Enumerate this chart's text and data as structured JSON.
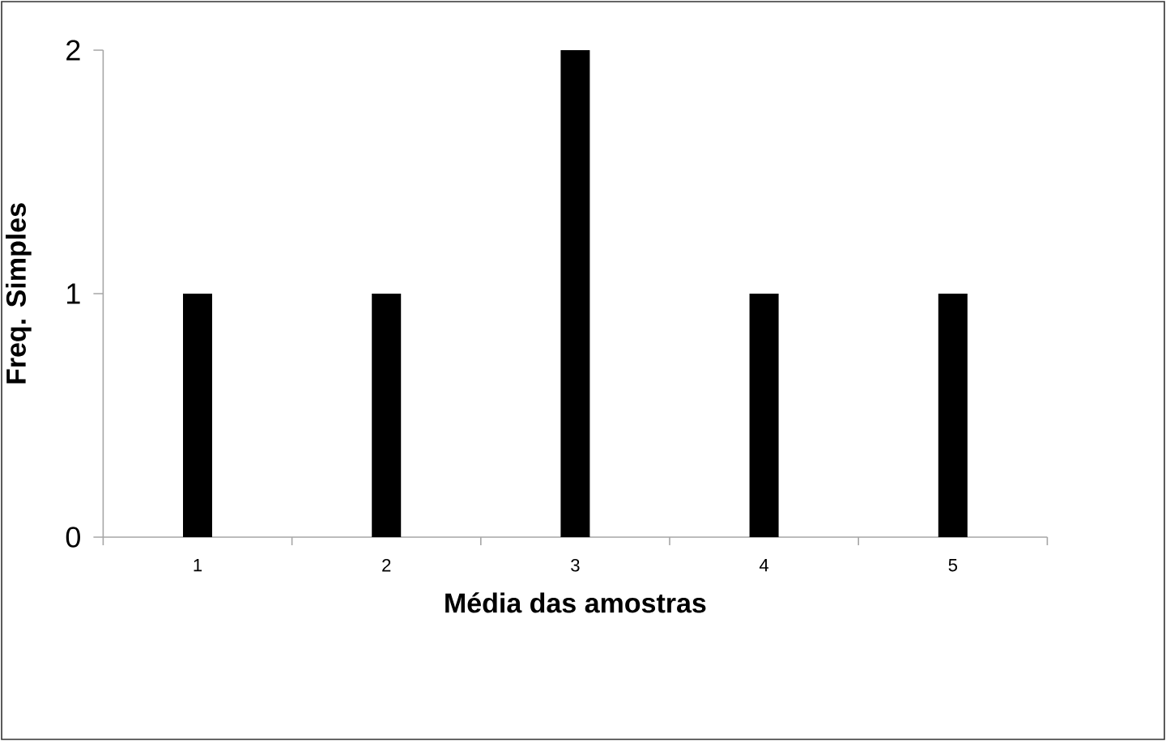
{
  "chart_data": {
    "type": "bar",
    "xlabel": "Média das amostras",
    "ylabel": "Freq. Simples",
    "categories": [
      "1",
      "2",
      "3",
      "4",
      "5"
    ],
    "values": [
      1,
      1,
      2,
      1,
      1
    ],
    "color": "#000000",
    "ylim": [
      0,
      2
    ],
    "yticks": [
      0,
      1,
      2
    ],
    "grid": false
  }
}
